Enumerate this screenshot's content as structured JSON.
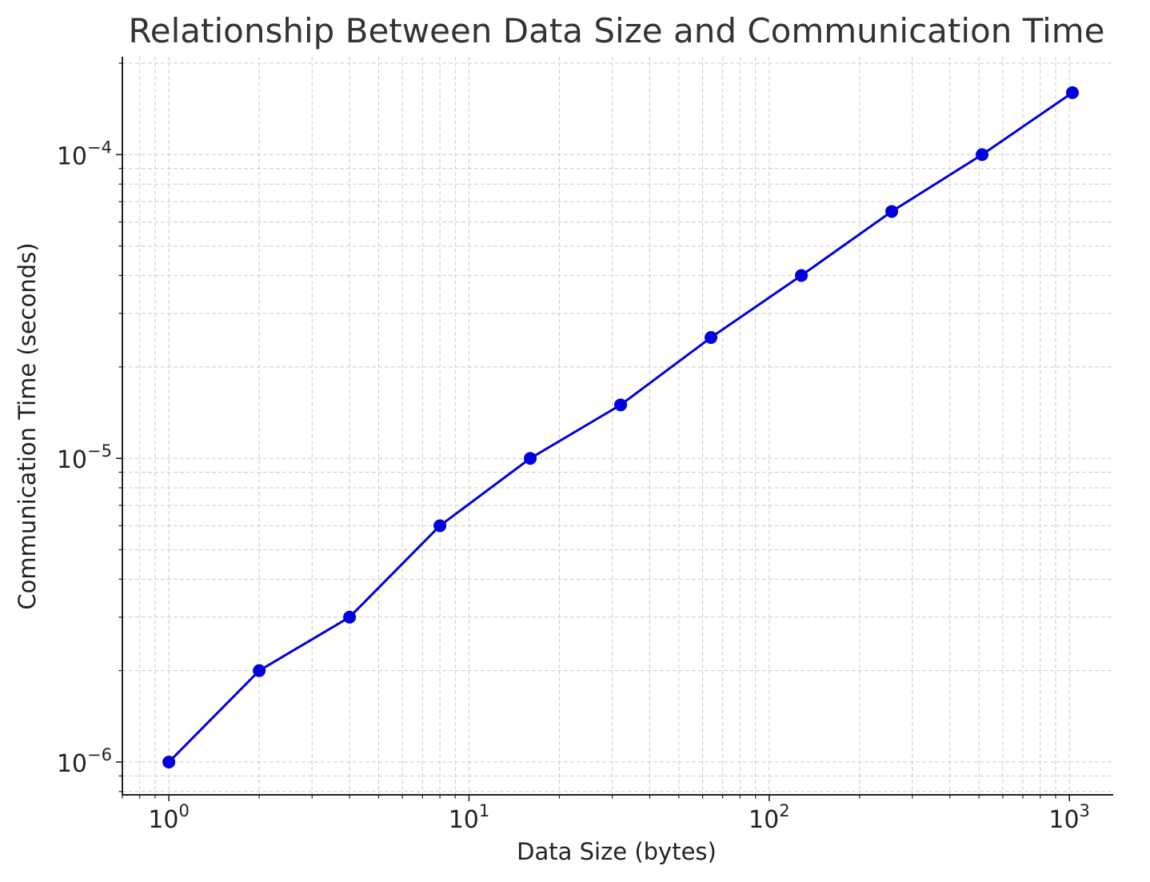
{
  "chart_data": {
    "type": "line",
    "title": "Relationship Between Data Size and Communication Time",
    "xlabel": "Data Size (bytes)",
    "ylabel": "Communication Time (seconds)",
    "x_scale": "log",
    "y_scale": "log",
    "xlim": [
      0.7,
      1400
    ],
    "ylim": [
      7.8e-07,
      0.00021
    ],
    "grid": true,
    "grid_style": "dashed",
    "x_major_ticks": [
      {
        "value": 1,
        "base": "10",
        "exp": "0"
      },
      {
        "value": 10,
        "base": "10",
        "exp": "1"
      },
      {
        "value": 100,
        "base": "10",
        "exp": "2"
      },
      {
        "value": 1000,
        "base": "10",
        "exp": "3"
      }
    ],
    "y_major_ticks": [
      {
        "value": 1e-06,
        "base": "10",
        "exp": "−6"
      },
      {
        "value": 1e-05,
        "base": "10",
        "exp": "−5"
      },
      {
        "value": 0.0001,
        "base": "10",
        "exp": "−4"
      }
    ],
    "series": [
      {
        "color": "#0000dd",
        "marker": "circle",
        "x": [
          1,
          2,
          4,
          8,
          16,
          32,
          64,
          128,
          256,
          512,
          1024
        ],
        "y": [
          1e-06,
          2e-06,
          3e-06,
          6e-06,
          1e-05,
          1.5e-05,
          2.5e-05,
          4e-05,
          6.5e-05,
          0.0001,
          0.00016
        ]
      }
    ]
  }
}
